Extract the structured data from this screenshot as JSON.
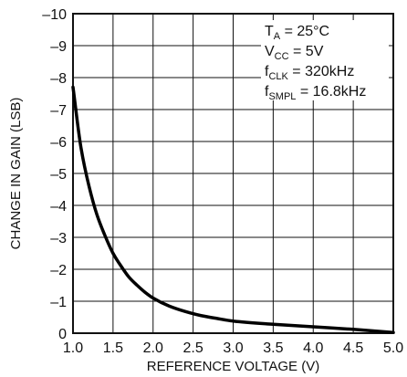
{
  "chart_data": {
    "type": "line",
    "title": "",
    "xlabel": "REFERENCE VOLTAGE (V)",
    "ylabel": "CHANGE IN GAIN (LSB)",
    "xlim": [
      1.0,
      5.0
    ],
    "ylim": [
      0,
      -10
    ],
    "y_axis_inverted": true,
    "grid": true,
    "x_ticks": [
      1.0,
      1.5,
      2.0,
      2.5,
      3.0,
      3.5,
      4.0,
      4.5,
      5.0
    ],
    "x_tick_labels": [
      "1.0",
      "1.5",
      "2.0",
      "2.5",
      "3.0",
      "3.5",
      "4.0",
      "4.5",
      "5.0"
    ],
    "y_ticks": [
      0,
      -1,
      -2,
      -3,
      -4,
      -5,
      -6,
      -7,
      -8,
      -9,
      -10
    ],
    "y_tick_labels": [
      "0",
      "–1",
      "–2",
      "–3",
      "–4",
      "–5",
      "–6",
      "–7",
      "–8",
      "–9",
      "–10"
    ],
    "annotations": [
      {
        "main": "T",
        "sub": "A",
        "rest": " = 25°C"
      },
      {
        "main": "V",
        "sub": "CC",
        "rest": " = 5V"
      },
      {
        "main": "f",
        "sub": "CLK",
        "rest": " = 320kHz"
      },
      {
        "main": "f",
        "sub": "SMPL",
        "rest": " = 16.8kHz"
      }
    ],
    "annotation_placement": "top-right",
    "series": [
      {
        "x": [
          1.0,
          1.1,
          1.2,
          1.3,
          1.4,
          1.5,
          1.6,
          1.7,
          1.8,
          1.9,
          2.0,
          2.2,
          2.4,
          2.6,
          2.8,
          3.0,
          3.5,
          4.0,
          4.5,
          5.0
        ],
        "y": [
          -7.7,
          -5.8,
          -4.6,
          -3.7,
          -3.05,
          -2.5,
          -2.1,
          -1.75,
          -1.5,
          -1.28,
          -1.1,
          -0.85,
          -0.68,
          -0.55,
          -0.46,
          -0.38,
          -0.28,
          -0.2,
          -0.12,
          -0.02
        ]
      }
    ]
  }
}
